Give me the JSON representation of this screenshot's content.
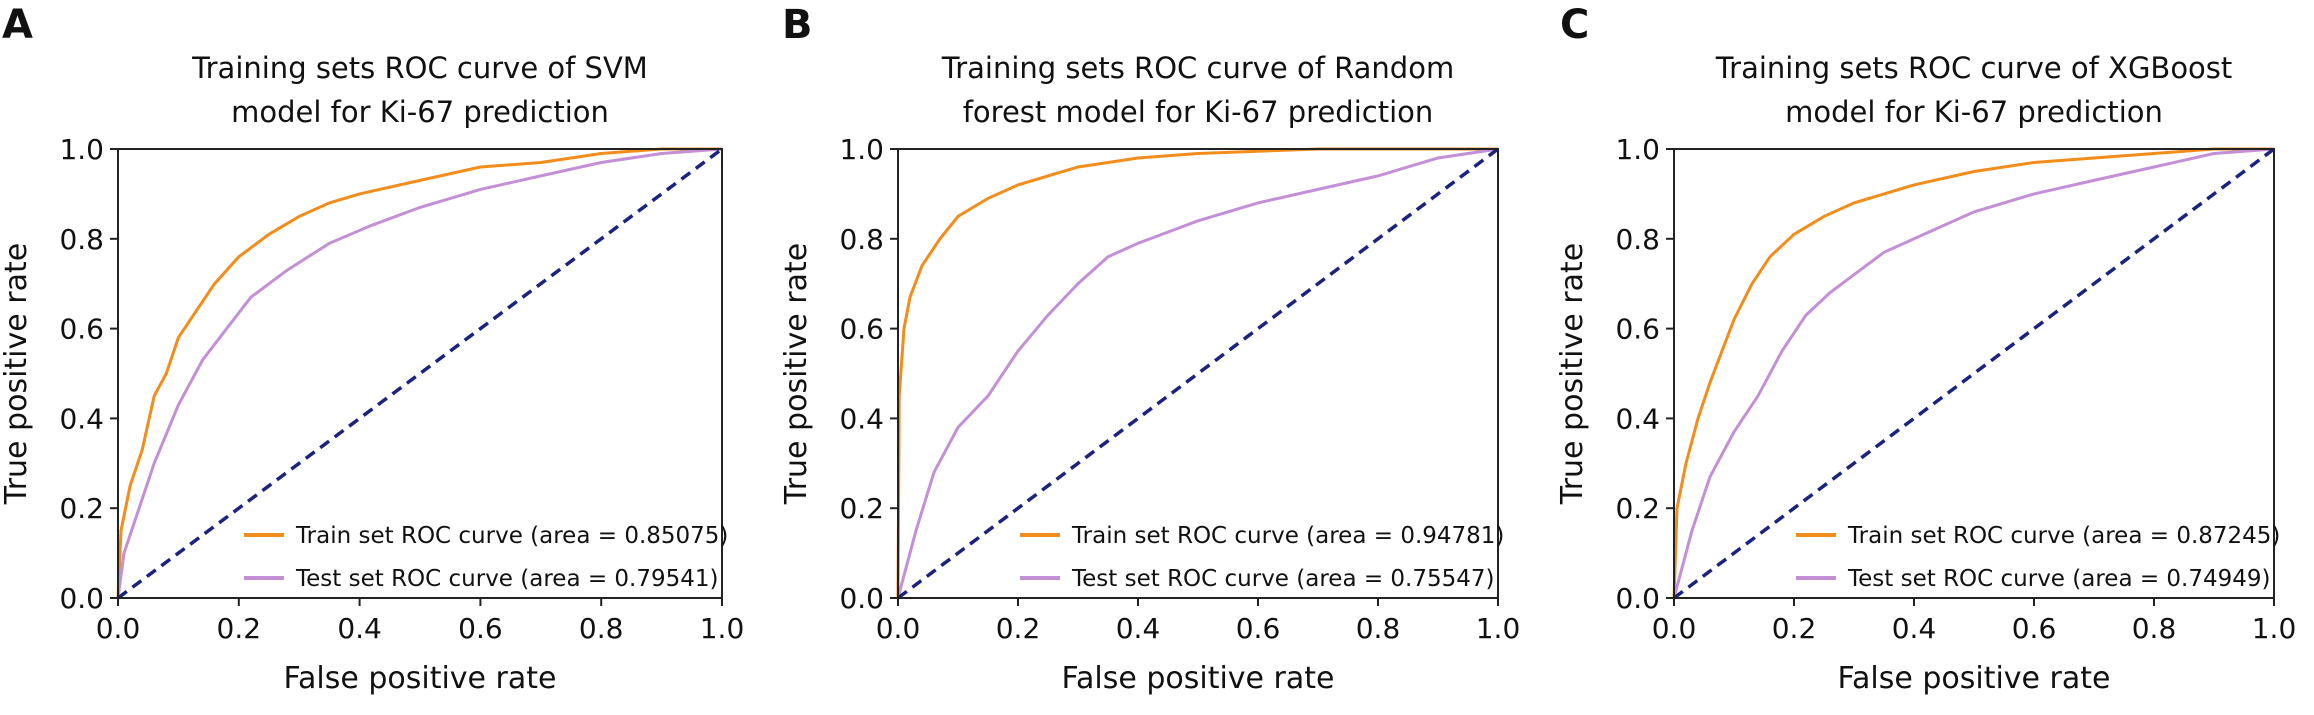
{
  "panels": [
    {
      "letter": "A"
    },
    {
      "letter": "B"
    },
    {
      "letter": "C"
    }
  ],
  "colors": {
    "train": "#f28c1a",
    "test": "#c38fd6",
    "diagonal": "#1a237e",
    "axis": "#222222"
  },
  "chart_data": [
    {
      "type": "line",
      "title_lines": [
        "Training sets ROC curve of SVM",
        "model for Ki-67 prediction"
      ],
      "xlabel": "False positive rate",
      "ylabel": "True positive rate",
      "xlim": [
        0.0,
        1.0
      ],
      "ylim": [
        0.0,
        1.0
      ],
      "xticks": [
        "0.0",
        "0.2",
        "0.4",
        "0.6",
        "0.8",
        "1.0"
      ],
      "yticks": [
        "0.0",
        "0.2",
        "0.4",
        "0.6",
        "0.8",
        "1.0"
      ],
      "grid": false,
      "legend_position": "lower-right",
      "series": [
        {
          "name": "Train set ROC curve (area = 0.85075)",
          "color": "#f28c1a",
          "x": [
            0,
            0.005,
            0.02,
            0.04,
            0.06,
            0.08,
            0.1,
            0.13,
            0.16,
            0.2,
            0.25,
            0.3,
            0.35,
            0.4,
            0.5,
            0.6,
            0.7,
            0.8,
            0.9,
            1.0
          ],
          "y": [
            0,
            0.15,
            0.25,
            0.33,
            0.45,
            0.5,
            0.58,
            0.64,
            0.7,
            0.76,
            0.81,
            0.85,
            0.88,
            0.9,
            0.93,
            0.96,
            0.97,
            0.99,
            1.0,
            1.0
          ]
        },
        {
          "name": "Test set ROC curve (area = 0.79541)",
          "color": "#c38fd6",
          "x": [
            0,
            0.01,
            0.03,
            0.06,
            0.1,
            0.14,
            0.18,
            0.22,
            0.28,
            0.35,
            0.42,
            0.5,
            0.6,
            0.7,
            0.8,
            0.9,
            1.0
          ],
          "y": [
            0,
            0.1,
            0.18,
            0.3,
            0.43,
            0.53,
            0.6,
            0.67,
            0.73,
            0.79,
            0.83,
            0.87,
            0.91,
            0.94,
            0.97,
            0.99,
            1.0
          ]
        },
        {
          "name": "",
          "color": "#1a237e",
          "dashed": true,
          "x": [
            0,
            1
          ],
          "y": [
            0,
            1
          ]
        }
      ]
    },
    {
      "type": "line",
      "title_lines": [
        "Training sets ROC curve of Random",
        "forest model for Ki-67 prediction"
      ],
      "xlabel": "False positive rate",
      "ylabel": "True positive rate",
      "xlim": [
        0.0,
        1.0
      ],
      "ylim": [
        0.0,
        1.0
      ],
      "xticks": [
        "0.0",
        "0.2",
        "0.4",
        "0.6",
        "0.8",
        "1.0"
      ],
      "yticks": [
        "0.0",
        "0.2",
        "0.4",
        "0.6",
        "0.8",
        "1.0"
      ],
      "grid": false,
      "legend_position": "lower-right",
      "series": [
        {
          "name": "Train set ROC curve (area = 0.94781)",
          "color": "#f28c1a",
          "x": [
            0,
            0.002,
            0.01,
            0.02,
            0.04,
            0.07,
            0.1,
            0.15,
            0.2,
            0.3,
            0.4,
            0.5,
            0.6,
            0.7,
            0.8,
            1.0
          ],
          "y": [
            0,
            0.45,
            0.6,
            0.67,
            0.74,
            0.8,
            0.85,
            0.89,
            0.92,
            0.96,
            0.98,
            0.99,
            0.995,
            1.0,
            1.0,
            1.0
          ]
        },
        {
          "name": "Test set ROC curve (area = 0.75547)",
          "color": "#c38fd6",
          "x": [
            0,
            0.01,
            0.03,
            0.06,
            0.1,
            0.15,
            0.2,
            0.25,
            0.3,
            0.35,
            0.4,
            0.5,
            0.6,
            0.7,
            0.8,
            0.9,
            1.0
          ],
          "y": [
            0,
            0.05,
            0.15,
            0.28,
            0.38,
            0.45,
            0.55,
            0.63,
            0.7,
            0.76,
            0.79,
            0.84,
            0.88,
            0.91,
            0.94,
            0.98,
            1.0
          ]
        },
        {
          "name": "",
          "color": "#1a237e",
          "dashed": true,
          "x": [
            0,
            1
          ],
          "y": [
            0,
            1
          ]
        }
      ]
    },
    {
      "type": "line",
      "title_lines": [
        "Training sets ROC curve of XGBoost",
        "model for Ki-67 prediction"
      ],
      "xlabel": "False positive rate",
      "ylabel": "True positive rate",
      "xlim": [
        0.0,
        1.0
      ],
      "ylim": [
        0.0,
        1.0
      ],
      "xticks": [
        "0.0",
        "0.2",
        "0.4",
        "0.6",
        "0.8",
        "1.0"
      ],
      "yticks": [
        "0.0",
        "0.2",
        "0.4",
        "0.6",
        "0.8",
        "1.0"
      ],
      "grid": false,
      "legend_position": "lower-right",
      "series": [
        {
          "name": "Train set ROC curve (area = 0.87245)",
          "color": "#f28c1a",
          "x": [
            0,
            0.005,
            0.02,
            0.04,
            0.06,
            0.08,
            0.1,
            0.13,
            0.16,
            0.2,
            0.25,
            0.3,
            0.35,
            0.4,
            0.5,
            0.6,
            0.7,
            0.8,
            0.9,
            1.0
          ],
          "y": [
            0,
            0.2,
            0.3,
            0.4,
            0.48,
            0.55,
            0.62,
            0.7,
            0.76,
            0.81,
            0.85,
            0.88,
            0.9,
            0.92,
            0.95,
            0.97,
            0.98,
            0.99,
            1.0,
            1.0
          ]
        },
        {
          "name": "Test set ROC curve (area = 0.74949)",
          "color": "#c38fd6",
          "x": [
            0,
            0.01,
            0.03,
            0.06,
            0.1,
            0.14,
            0.18,
            0.22,
            0.26,
            0.3,
            0.35,
            0.4,
            0.5,
            0.6,
            0.7,
            0.8,
            0.9,
            1.0
          ],
          "y": [
            0,
            0.05,
            0.15,
            0.27,
            0.37,
            0.45,
            0.55,
            0.63,
            0.68,
            0.72,
            0.77,
            0.8,
            0.86,
            0.9,
            0.93,
            0.96,
            0.99,
            1.0
          ]
        },
        {
          "name": "",
          "color": "#1a237e",
          "dashed": true,
          "x": [
            0,
            1
          ],
          "y": [
            0,
            1
          ]
        }
      ]
    }
  ]
}
